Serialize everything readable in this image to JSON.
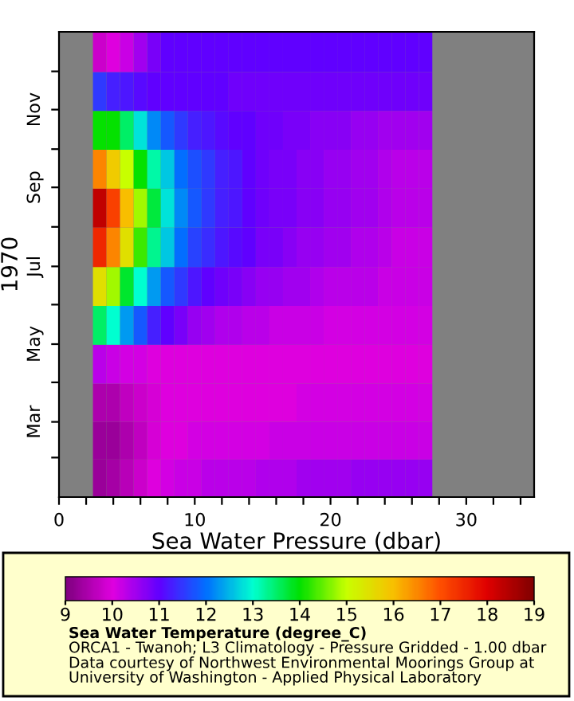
{
  "chart_data": {
    "type": "heatmap",
    "xlabel": "Sea Water Pressure (dbar)",
    "ylabel": "1970",
    "clabel": "Sea Water Temperature (degree_C)",
    "annotations": [
      "ORCA1 - Twanoh; L3 Climatology - Pressure Gridded - 1.00 dbar",
      "Data courtesy of Northwest Environmental Moorings Group at University of Washington - Applied Physical Laboratory"
    ],
    "x": [
      3,
      4,
      5,
      6,
      7,
      8,
      9,
      10,
      11,
      12,
      13,
      14,
      15,
      16,
      17,
      18,
      19,
      20,
      21,
      22,
      23,
      24,
      25,
      26,
      27
    ],
    "y": [
      "1970-12-16",
      "1970-11-15",
      "1970-10-16",
      "1970-09-15",
      "1970-08-16",
      "1970-07-16",
      "1970-06-15",
      "1970-05-16",
      "1970-04-15",
      "1970-03-16",
      "1970-02-14",
      "1970-01-16"
    ],
    "cells": [
      [
        9.8,
        10.0,
        10.2,
        10.5,
        10.8,
        11.0,
        11.0,
        11.0,
        11.0,
        11.0,
        11.0,
        11.0,
        11.0,
        11.0,
        11.0,
        11.0,
        11.0,
        11.0,
        11.0,
        11.0,
        11.0,
        11.0,
        11.0,
        11.0,
        11.0
      ],
      [
        11.5,
        11.3,
        11.2,
        11.1,
        11.0,
        11.0,
        11.0,
        11.0,
        11.0,
        11.0,
        10.9,
        10.9,
        10.9,
        10.9,
        10.9,
        10.9,
        10.9,
        10.9,
        10.9,
        10.9,
        10.9,
        10.9,
        10.9,
        10.9,
        10.9
      ],
      [
        14.0,
        14.0,
        13.5,
        12.8,
        12.2,
        11.8,
        11.5,
        11.3,
        11.2,
        11.1,
        11.0,
        11.0,
        10.9,
        10.9,
        10.8,
        10.8,
        10.7,
        10.7,
        10.7,
        10.6,
        10.6,
        10.5,
        10.5,
        10.5,
        10.5
      ],
      [
        16.5,
        15.8,
        15.0,
        14.0,
        13.2,
        12.6,
        12.0,
        11.7,
        11.5,
        11.3,
        11.2,
        11.0,
        10.9,
        10.8,
        10.8,
        10.7,
        10.7,
        10.6,
        10.6,
        10.5,
        10.5,
        10.4,
        10.3,
        10.3,
        10.3
      ],
      [
        18.3,
        17.2,
        16.0,
        14.8,
        13.7,
        12.8,
        12.2,
        11.8,
        11.5,
        11.3,
        11.2,
        11.0,
        10.9,
        10.8,
        10.8,
        10.7,
        10.7,
        10.6,
        10.6,
        10.5,
        10.5,
        10.4,
        10.3,
        10.3,
        10.3
      ],
      [
        17.5,
        16.5,
        15.5,
        14.3,
        13.3,
        12.6,
        12.0,
        11.6,
        11.4,
        11.2,
        11.1,
        11.0,
        10.8,
        10.8,
        10.7,
        10.6,
        10.6,
        10.5,
        10.5,
        10.4,
        10.4,
        10.3,
        10.2,
        10.2,
        10.2
      ],
      [
        15.5,
        14.8,
        13.8,
        13.0,
        12.3,
        11.8,
        11.5,
        11.2,
        11.0,
        10.9,
        10.8,
        10.7,
        10.6,
        10.6,
        10.5,
        10.5,
        10.4,
        10.3,
        10.3,
        10.3,
        10.3,
        10.2,
        10.2,
        10.2,
        10.2
      ],
      [
        13.5,
        13.0,
        12.3,
        11.8,
        11.3,
        11.0,
        10.8,
        10.6,
        10.5,
        10.4,
        10.4,
        10.3,
        10.3,
        10.2,
        10.2,
        10.2,
        10.2,
        10.1,
        10.1,
        10.1,
        10.1,
        10.1,
        10.1,
        10.1,
        10.1
      ],
      [
        10.3,
        10.2,
        10.1,
        10.1,
        10.0,
        10.0,
        10.0,
        10.0,
        10.0,
        10.0,
        10.0,
        10.0,
        10.0,
        10.0,
        10.0,
        10.0,
        10.0,
        10.0,
        10.0,
        10.0,
        10.0,
        10.0,
        10.0,
        10.0,
        10.0
      ],
      [
        9.5,
        9.5,
        9.7,
        9.8,
        9.9,
        10.0,
        10.0,
        10.0,
        10.0,
        10.0,
        10.0,
        10.0,
        10.0,
        10.0,
        10.0,
        10.1,
        10.1,
        10.1,
        10.1,
        10.1,
        10.1,
        10.1,
        10.1,
        10.1,
        10.1
      ],
      [
        9.3,
        9.3,
        9.5,
        9.7,
        9.9,
        10.0,
        10.0,
        10.1,
        10.1,
        10.1,
        10.1,
        10.1,
        10.1,
        10.2,
        10.2,
        10.2,
        10.2,
        10.2,
        10.2,
        10.2,
        10.2,
        10.2,
        10.2,
        10.2,
        10.2
      ],
      [
        9.3,
        9.4,
        9.6,
        9.8,
        10.0,
        10.1,
        10.2,
        10.2,
        10.3,
        10.3,
        10.3,
        10.3,
        10.4,
        10.4,
        10.4,
        10.5,
        10.5,
        10.5,
        10.5,
        10.6,
        10.6,
        10.6,
        10.6,
        10.6,
        10.6
      ]
    ],
    "xlim": [
      0,
      35
    ],
    "xticks": [
      0,
      {
        "value": 2,
        "label": null
      },
      {
        "value": 4,
        "label": null
      },
      {
        "value": 6,
        "label": null
      },
      {
        "value": 8,
        "label": null
      },
      10,
      {
        "value": 12,
        "label": null
      },
      {
        "value": 14,
        "label": null
      },
      {
        "value": 16,
        "label": null
      },
      {
        "value": 18,
        "label": null
      },
      20,
      {
        "value": 22,
        "label": null
      },
      {
        "value": 24,
        "label": null
      },
      {
        "value": 26,
        "label": null
      },
      {
        "value": 28,
        "label": null
      },
      30,
      {
        "value": 32,
        "label": null
      },
      {
        "value": 34,
        "label": null
      }
    ],
    "ylim": [
      "1970-01-01",
      "1971-01-01"
    ],
    "yticks": [
      {
        "value": "1970-02",
        "label": null
      },
      {
        "value": "1970-03",
        "label": "Mar"
      },
      {
        "value": "1970-04",
        "label": null
      },
      {
        "value": "1970-05",
        "label": "May"
      },
      {
        "value": "1970-06",
        "label": null
      },
      {
        "value": "1970-07",
        "label": "Jul"
      },
      {
        "value": "1970-08",
        "label": null
      },
      {
        "value": "1970-09",
        "label": "Sep"
      },
      {
        "value": "1970-10",
        "label": null
      },
      {
        "value": "1970-11",
        "label": "Nov"
      },
      {
        "value": "1970-12",
        "label": null
      }
    ],
    "clim": [
      9,
      19
    ],
    "cticks": [
      9,
      10,
      11,
      12,
      13,
      14,
      15,
      16,
      17,
      18,
      19
    ],
    "grid": false
  }
}
